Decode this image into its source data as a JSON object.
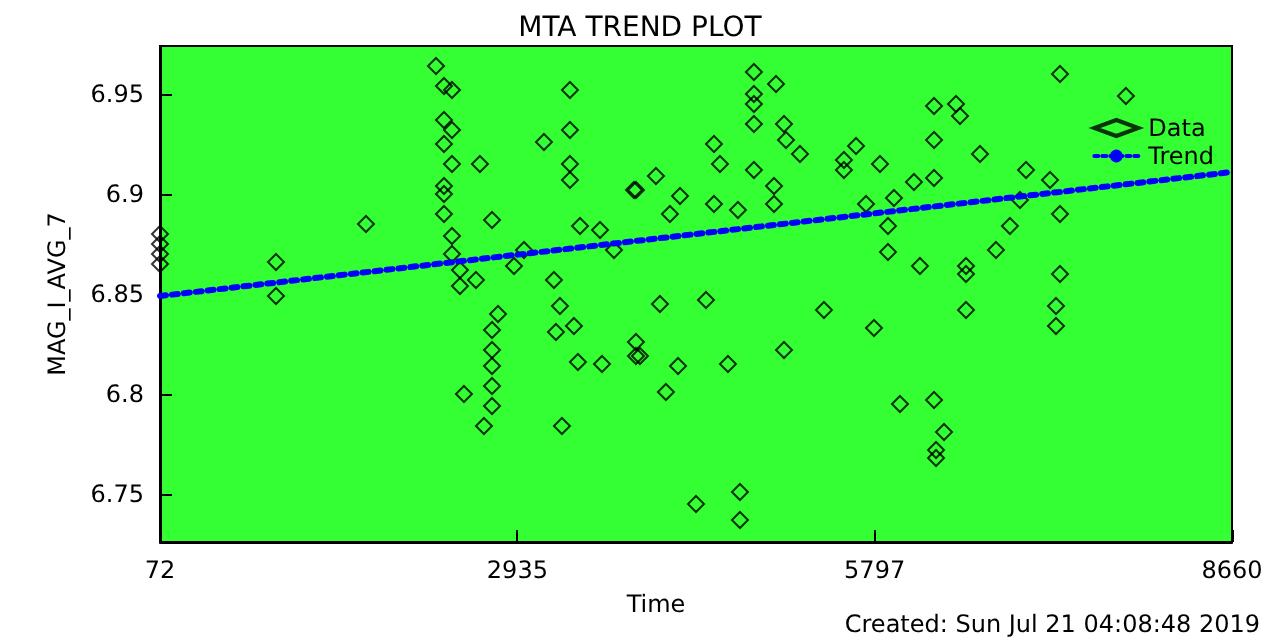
{
  "chart_data": {
    "type": "scatter",
    "title": "MTA TREND PLOT",
    "xlabel": "Time",
    "ylabel": "MAG_I_AVG_7",
    "annotations": [
      "Created: Sun Jul 21 04:08:48 2019"
    ],
    "xlim": [
      72,
      8660
    ],
    "xticks": [
      72,
      2935,
      5797,
      8660
    ],
    "ylim": [
      6.726,
      6.974
    ],
    "yticks": [
      6.75,
      6.8,
      6.85,
      6.9,
      6.95
    ],
    "grid": false,
    "legend": "top right",
    "series": [
      {
        "name": "Data",
        "marker": "diamond",
        "color": "#000000",
        "x": [
          72,
          72,
          72,
          72,
          1001,
          1001,
          1722,
          2283,
          2347,
          2347,
          2347,
          2411,
          2411,
          2411,
          2347,
          2347,
          2347,
          2411,
          2411,
          2475,
          2475,
          2603,
          2635,
          2732,
          2908,
          2988,
          3148,
          3228,
          3276,
          3356,
          3356,
          3356,
          3356,
          3437,
          3709,
          3869,
          3597,
          2507,
          2667,
          2732,
          2732,
          2732,
          2732,
          2732,
          2780,
          3244,
          3292,
          3388,
          3420,
          3613,
          3885,
          3917,
          4830,
          4830,
          4830,
          4830,
          4830,
          5007,
          5071,
          5087,
          5199,
          4510,
          4558,
          3885,
          4045,
          4238,
          4157,
          4510,
          4702,
          4991,
          4991,
          5551,
          5551,
          5648,
          5840,
          6112,
          5904,
          5904,
          5952,
          6273,
          6273,
          6273,
          6449,
          6481,
          6641,
          6529,
          6769,
          7010,
          7202,
          7282,
          7282,
          7282,
          7810,
          6881,
          6961,
          6160,
          6529,
          5728,
          4077,
          4446,
          4125,
          4366,
          4718,
          4718,
          6000,
          6273,
          6353,
          6289,
          6289,
          6529,
          7250,
          7250,
          5792,
          5071,
          4622,
          4222,
          3885,
          5391
        ],
        "values": [
          6.865,
          6.87,
          6.875,
          6.88,
          6.866,
          6.849,
          6.885,
          6.964,
          6.954,
          6.937,
          6.925,
          6.952,
          6.932,
          6.915,
          6.904,
          6.9,
          6.89,
          6.879,
          6.87,
          6.862,
          6.854,
          6.857,
          6.915,
          6.887,
          6.864,
          6.872,
          6.926,
          6.857,
          6.844,
          6.952,
          6.932,
          6.915,
          6.907,
          6.884,
          6.872,
          6.902,
          6.882,
          6.8,
          6.784,
          6.832,
          6.822,
          6.814,
          6.804,
          6.794,
          6.84,
          6.831,
          6.784,
          6.834,
          6.816,
          6.815,
          6.826,
          6.819,
          6.961,
          6.95,
          6.945,
          6.935,
          6.912,
          6.955,
          6.935,
          6.927,
          6.92,
          6.925,
          6.915,
          6.902,
          6.909,
          6.899,
          6.89,
          6.895,
          6.892,
          6.904,
          6.895,
          6.912,
          6.917,
          6.924,
          6.915,
          6.906,
          6.884,
          6.871,
          6.898,
          6.944,
          6.927,
          6.908,
          6.945,
          6.939,
          6.92,
          6.864,
          6.872,
          6.912,
          6.907,
          6.96,
          6.89,
          6.86,
          6.949,
          6.884,
          6.897,
          6.864,
          6.86,
          6.895,
          6.845,
          6.847,
          6.801,
          6.745,
          6.751,
          6.737,
          6.795,
          6.797,
          6.781,
          6.772,
          6.768,
          6.842,
          6.844,
          6.834,
          6.833,
          6.822,
          6.815,
          6.814,
          6.819,
          6.842
        ]
      },
      {
        "name": "Trend",
        "type": "line",
        "color": "#0000ff",
        "line_style": "dotted",
        "marker": "none",
        "x": [
          72,
          8660
        ],
        "values": [
          6.849,
          6.911
        ]
      }
    ]
  }
}
